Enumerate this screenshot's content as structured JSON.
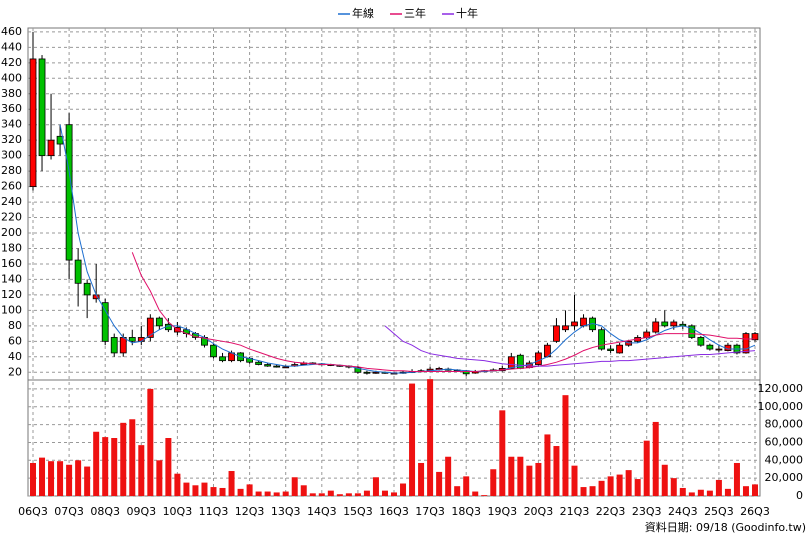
{
  "chart_data": {
    "type": "candlestick",
    "categories": [
      "06Q3",
      null,
      null,
      null,
      "07Q3",
      null,
      null,
      null,
      "08Q3",
      null,
      null,
      null,
      "09Q3",
      null,
      null,
      null,
      "10Q3",
      null,
      null,
      null,
      "11Q3",
      null,
      null,
      null,
      "12Q3",
      null,
      null,
      null,
      "13Q3",
      null,
      null,
      null,
      "14Q3",
      null,
      null,
      null,
      "15Q3",
      null,
      null,
      null,
      "16Q3",
      null,
      null,
      null,
      "17Q3",
      null,
      null,
      null,
      "18Q3",
      null,
      null,
      null,
      "19Q3",
      null,
      null,
      null,
      "20Q3",
      null,
      null,
      null,
      "21Q3",
      null,
      null,
      null,
      "22Q3",
      null,
      null,
      null,
      "23Q3",
      null,
      null,
      null,
      "24Q3",
      null,
      null,
      null,
      "25Q3",
      null,
      null,
      null,
      "26Q3"
    ],
    "ohlc": [
      [
        260,
        460,
        255,
        425
      ],
      [
        425,
        430,
        280,
        300
      ],
      [
        300,
        380,
        295,
        320
      ],
      [
        325,
        340,
        300,
        315
      ],
      [
        340,
        355,
        140,
        165
      ],
      [
        165,
        180,
        105,
        135
      ],
      [
        135,
        140,
        90,
        120
      ],
      [
        115,
        160,
        110,
        120
      ],
      [
        110,
        115,
        55,
        60
      ],
      [
        65,
        70,
        40,
        45
      ],
      [
        45,
        70,
        40,
        65
      ],
      [
        65,
        75,
        55,
        60
      ],
      [
        60,
        80,
        55,
        65
      ],
      [
        65,
        95,
        60,
        90
      ],
      [
        90,
        92,
        75,
        80
      ],
      [
        82,
        90,
        72,
        75
      ],
      [
        72,
        85,
        68,
        78
      ],
      [
        75,
        78,
        65,
        70
      ],
      [
        70,
        72,
        62,
        65
      ],
      [
        65,
        68,
        52,
        55
      ],
      [
        55,
        57,
        38,
        40
      ],
      [
        40,
        45,
        33,
        35
      ],
      [
        35,
        48,
        33,
        45
      ],
      [
        45,
        46,
        33,
        35
      ],
      [
        38,
        40,
        31,
        33
      ],
      [
        33,
        35,
        29,
        30
      ],
      [
        30,
        32,
        27,
        28
      ],
      [
        28,
        30,
        26,
        27
      ],
      [
        27,
        29,
        26,
        27
      ],
      [
        28,
        33,
        27,
        30
      ],
      [
        30,
        34,
        29,
        32
      ],
      [
        32,
        33,
        30,
        31
      ],
      [
        31,
        32,
        29,
        30
      ],
      [
        30,
        31,
        28,
        30
      ],
      [
        29,
        30,
        27,
        28
      ],
      [
        28,
        29,
        25,
        27
      ],
      [
        26,
        28,
        18,
        20
      ],
      [
        20,
        22,
        17,
        19
      ],
      [
        19,
        22,
        18,
        20
      ],
      [
        20,
        21,
        18,
        19
      ],
      [
        19,
        20,
        18,
        19
      ],
      [
        19,
        22,
        18,
        20
      ],
      [
        20,
        24,
        19,
        21
      ],
      [
        21,
        24,
        20,
        22
      ],
      [
        22,
        27,
        21,
        24
      ],
      [
        23,
        27,
        22,
        25
      ],
      [
        24,
        26,
        22,
        23
      ],
      [
        23,
        24,
        21,
        22
      ],
      [
        22,
        23,
        15,
        18
      ],
      [
        19,
        23,
        18,
        21
      ],
      [
        21,
        23,
        20,
        22
      ],
      [
        22,
        25,
        21,
        23
      ],
      [
        22,
        28,
        21,
        25
      ],
      [
        25,
        45,
        24,
        40
      ],
      [
        42,
        44,
        24,
        25
      ],
      [
        26,
        35,
        25,
        32
      ],
      [
        30,
        48,
        29,
        45
      ],
      [
        40,
        58,
        39,
        55
      ],
      [
        60,
        90,
        58,
        80
      ],
      [
        75,
        100,
        72,
        80
      ],
      [
        80,
        120,
        75,
        85
      ],
      [
        80,
        95,
        78,
        90
      ],
      [
        90,
        92,
        72,
        75
      ],
      [
        75,
        78,
        48,
        50
      ],
      [
        50,
        55,
        45,
        48
      ],
      [
        45,
        58,
        44,
        55
      ],
      [
        55,
        62,
        53,
        60
      ],
      [
        60,
        68,
        58,
        65
      ],
      [
        65,
        75,
        63,
        72
      ],
      [
        72,
        90,
        70,
        85
      ],
      [
        85,
        100,
        78,
        80
      ],
      [
        80,
        88,
        75,
        85
      ],
      [
        82,
        86,
        76,
        80
      ],
      [
        80,
        82,
        63,
        65
      ],
      [
        65,
        67,
        53,
        55
      ],
      [
        55,
        57,
        48,
        50
      ],
      [
        50,
        56,
        46,
        50
      ],
      [
        48,
        58,
        47,
        55
      ],
      [
        55,
        57,
        43,
        45
      ],
      [
        45,
        72,
        44,
        70
      ],
      [
        62,
        72,
        60,
        70
      ]
    ],
    "up_color": "#ff0000",
    "down_color": "#00c000",
    "series": [
      {
        "name": "年線",
        "color": "#1e6fd0",
        "values": [
          null,
          null,
          null,
          340,
          280,
          200,
          150,
          120,
          100,
          80,
          65,
          58,
          60,
          68,
          75,
          80,
          80,
          76,
          70,
          65,
          57,
          50,
          45,
          40,
          38,
          35,
          32,
          30,
          28,
          28,
          29,
          30,
          31,
          30,
          29,
          28,
          25,
          23,
          21,
          20,
          19,
          19,
          20,
          21,
          22,
          23,
          24,
          23,
          22,
          21,
          21,
          22,
          23,
          26,
          28,
          30,
          35,
          40,
          50,
          62,
          72,
          80,
          83,
          80,
          70,
          62,
          58,
          58,
          62,
          68,
          74,
          78,
          80,
          77,
          70,
          62,
          55,
          50,
          50,
          50,
          55
        ]
      },
      {
        "name": "三年",
        "color": "#e0106a",
        "values": [
          null,
          null,
          null,
          null,
          null,
          null,
          null,
          null,
          null,
          null,
          null,
          175,
          145,
          125,
          100,
          85,
          75,
          70,
          66,
          64,
          62,
          60,
          58,
          55,
          50,
          46,
          42,
          38,
          35,
          33,
          32,
          31,
          30,
          30,
          29,
          28,
          27,
          25,
          24,
          23,
          22,
          22,
          21,
          21,
          21,
          21,
          21,
          21,
          21,
          21,
          22,
          22,
          23,
          24,
          25,
          26,
          28,
          30,
          33,
          37,
          42,
          48,
          52,
          55,
          57,
          59,
          61,
          63,
          65,
          68,
          70,
          70,
          70,
          70,
          69,
          68,
          66,
          64,
          64,
          63,
          63
        ]
      },
      {
        "name": "十年",
        "color": "#8a2be2",
        "values": [
          null,
          null,
          null,
          null,
          null,
          null,
          null,
          null,
          null,
          null,
          null,
          null,
          null,
          null,
          null,
          null,
          null,
          null,
          null,
          null,
          null,
          null,
          null,
          null,
          null,
          null,
          null,
          null,
          null,
          null,
          null,
          null,
          null,
          null,
          null,
          null,
          null,
          null,
          null,
          80,
          70,
          60,
          55,
          48,
          44,
          42,
          40,
          38,
          37,
          36,
          35,
          33,
          31,
          30,
          29,
          28,
          28,
          28,
          29,
          30,
          31,
          32,
          33,
          34,
          34,
          35,
          35,
          36,
          37,
          38,
          39,
          40,
          41,
          42,
          43,
          43,
          44,
          45,
          46,
          47,
          48
        ]
      }
    ],
    "volume": {
      "color": "#ee1111",
      "axis": "y2",
      "values": [
        37000,
        43000,
        39000,
        39000,
        35000,
        40000,
        33000,
        72000,
        66000,
        65000,
        82000,
        86000,
        57000,
        120000,
        40000,
        65000,
        25000,
        15000,
        12000,
        15000,
        10000,
        9000,
        28000,
        8000,
        13000,
        5000,
        5000,
        4000,
        5000,
        21000,
        12000,
        3000,
        3000,
        6000,
        2000,
        3000,
        3000,
        6000,
        21000,
        6000,
        4000,
        14000,
        126000,
        37000,
        131000,
        27000,
        44000,
        11000,
        22000,
        5000,
        1000,
        30000,
        96000,
        44000,
        44000,
        34000,
        37000,
        69000,
        56000,
        113000,
        34000,
        10000,
        11000,
        17000,
        22000,
        24000,
        29000,
        19000,
        62000,
        83000,
        35000,
        20000,
        9000,
        4000,
        7000,
        6000,
        18000,
        8000,
        37000,
        11000,
        13000
      ]
    },
    "ylim": [
      10,
      465
    ],
    "yticks": [
      20,
      40,
      60,
      80,
      100,
      120,
      140,
      160,
      180,
      200,
      220,
      240,
      260,
      280,
      300,
      320,
      340,
      360,
      380,
      400,
      420,
      440,
      460
    ],
    "y2lim": [
      0,
      130000
    ],
    "y2ticks": [
      0,
      {
        "value": 20000,
        "label": "20,000"
      },
      {
        "value": 40000,
        "label": "40,000"
      },
      {
        "value": 60000,
        "label": "60,000"
      },
      {
        "value": 80000,
        "label": "80,000"
      },
      {
        "value": 100000,
        "label": "100,000"
      },
      {
        "value": 120000,
        "label": "120,000"
      }
    ],
    "grid": true,
    "legend": "top",
    "footer": "資料日期: 09/18 (Goodinfo.tw)"
  }
}
